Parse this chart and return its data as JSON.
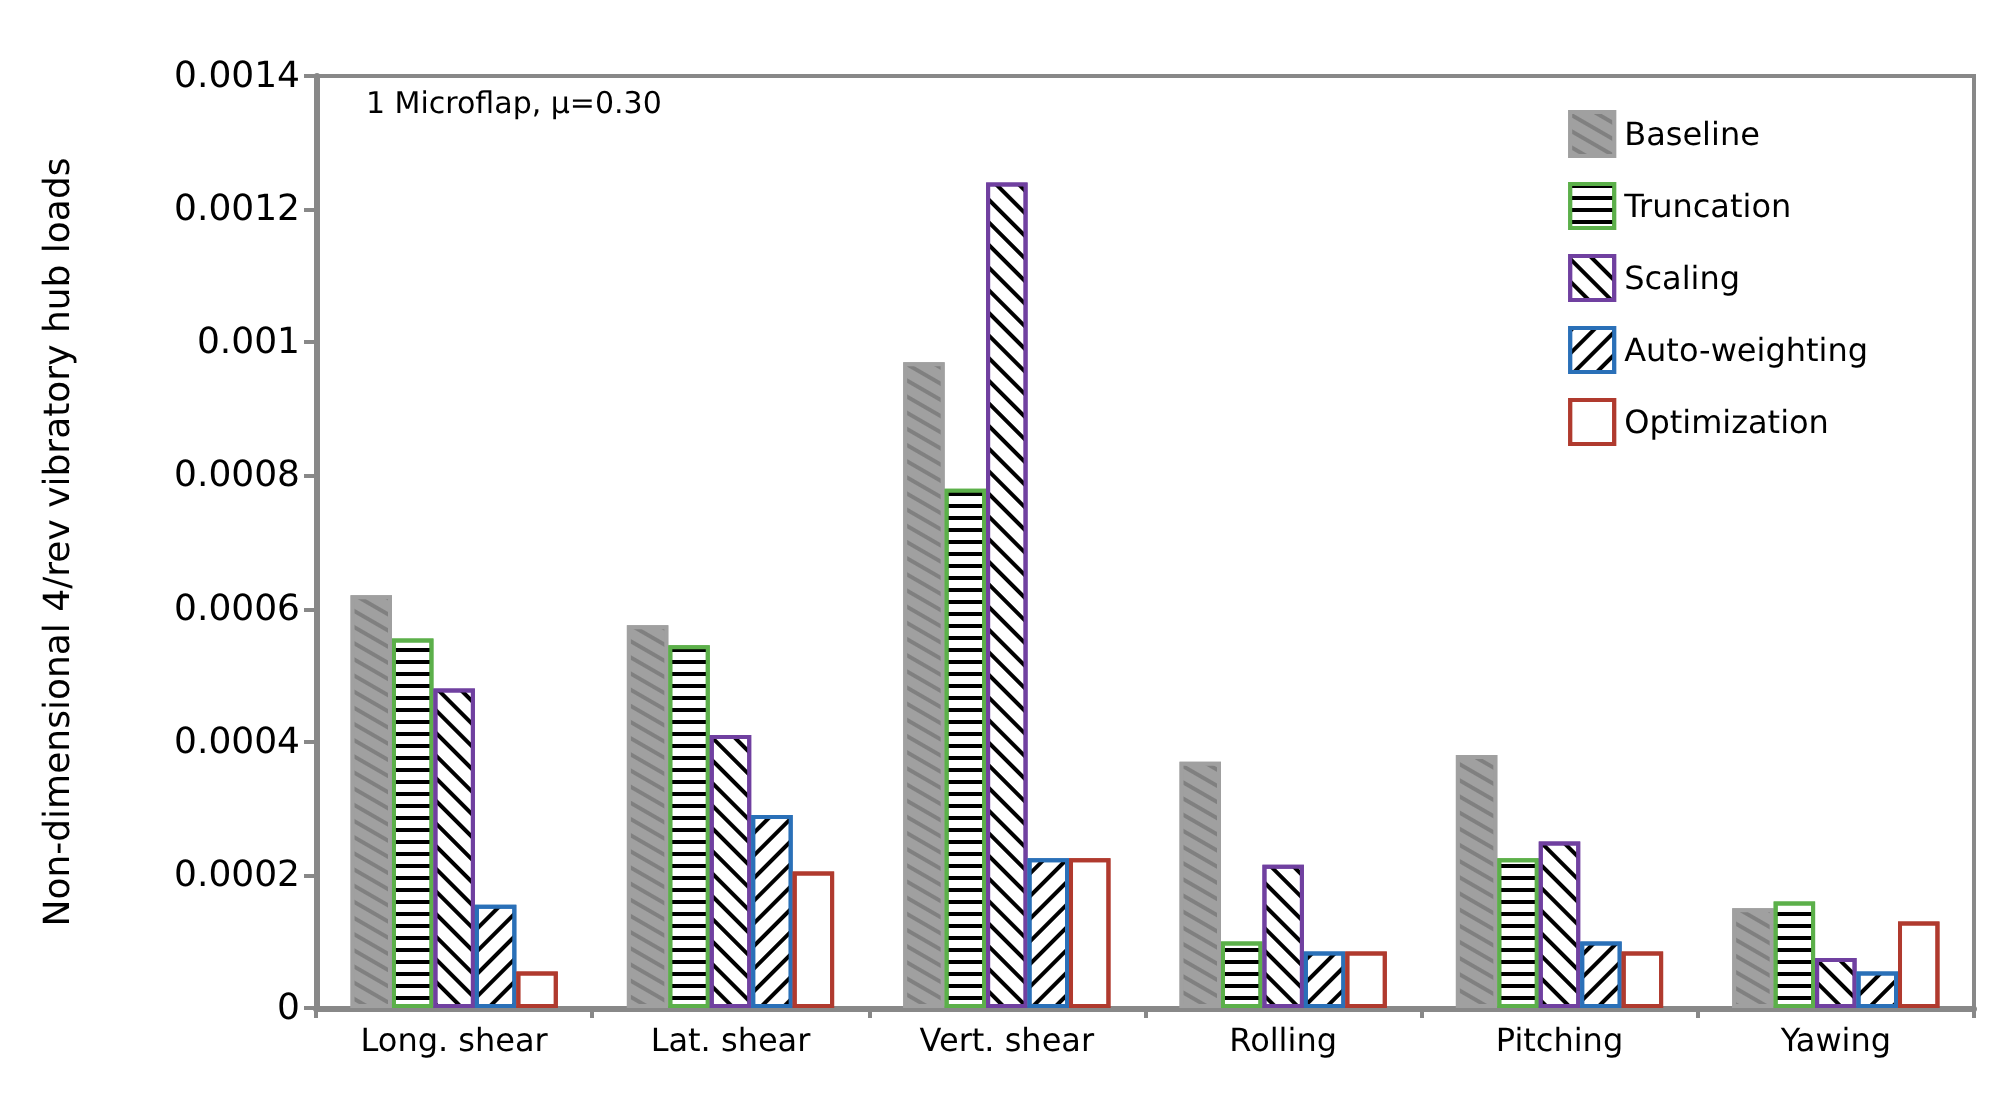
{
  "chart_data": {
    "type": "bar",
    "ylabel": "Non-dimensional 4/rev vibratory hub loads",
    "annotations": [
      "1 Microflap, μ=0.30"
    ],
    "categories": [
      "Long. shear",
      "Lat. shear",
      "Vert. shear",
      "Rolling",
      "Pitching",
      "Yawing"
    ],
    "series": [
      {
        "name": "Baseline",
        "color": "#a0a0a0",
        "values": [
          0.00062,
          0.000575,
          0.00097,
          0.00037,
          0.00038,
          0.00015
        ]
      },
      {
        "name": "Truncation",
        "color": "#5cb04a",
        "values": [
          0.000555,
          0.000545,
          0.00078,
          0.0001,
          0.000225,
          0.00016
        ]
      },
      {
        "name": "Scaling",
        "color": "#7040a0",
        "values": [
          0.00048,
          0.00041,
          0.00124,
          0.000215,
          0.00025,
          7.5e-05
        ]
      },
      {
        "name": "Auto-weighting",
        "color": "#2a70b8",
        "values": [
          0.000155,
          0.00029,
          0.000225,
          8.5e-05,
          0.0001,
          5.5e-05
        ]
      },
      {
        "name": "Optimization",
        "color": "#b03a2e",
        "values": [
          5.5e-05,
          0.000205,
          0.000225,
          8.5e-05,
          8.5e-05,
          0.00013
        ]
      }
    ],
    "ylim": [
      0,
      0.0014
    ],
    "yticks": [
      0,
      0.0002,
      0.0004,
      0.0006,
      0.0008,
      0.001,
      0.0012,
      0.0014
    ],
    "grid": false,
    "legend": "top right"
  }
}
